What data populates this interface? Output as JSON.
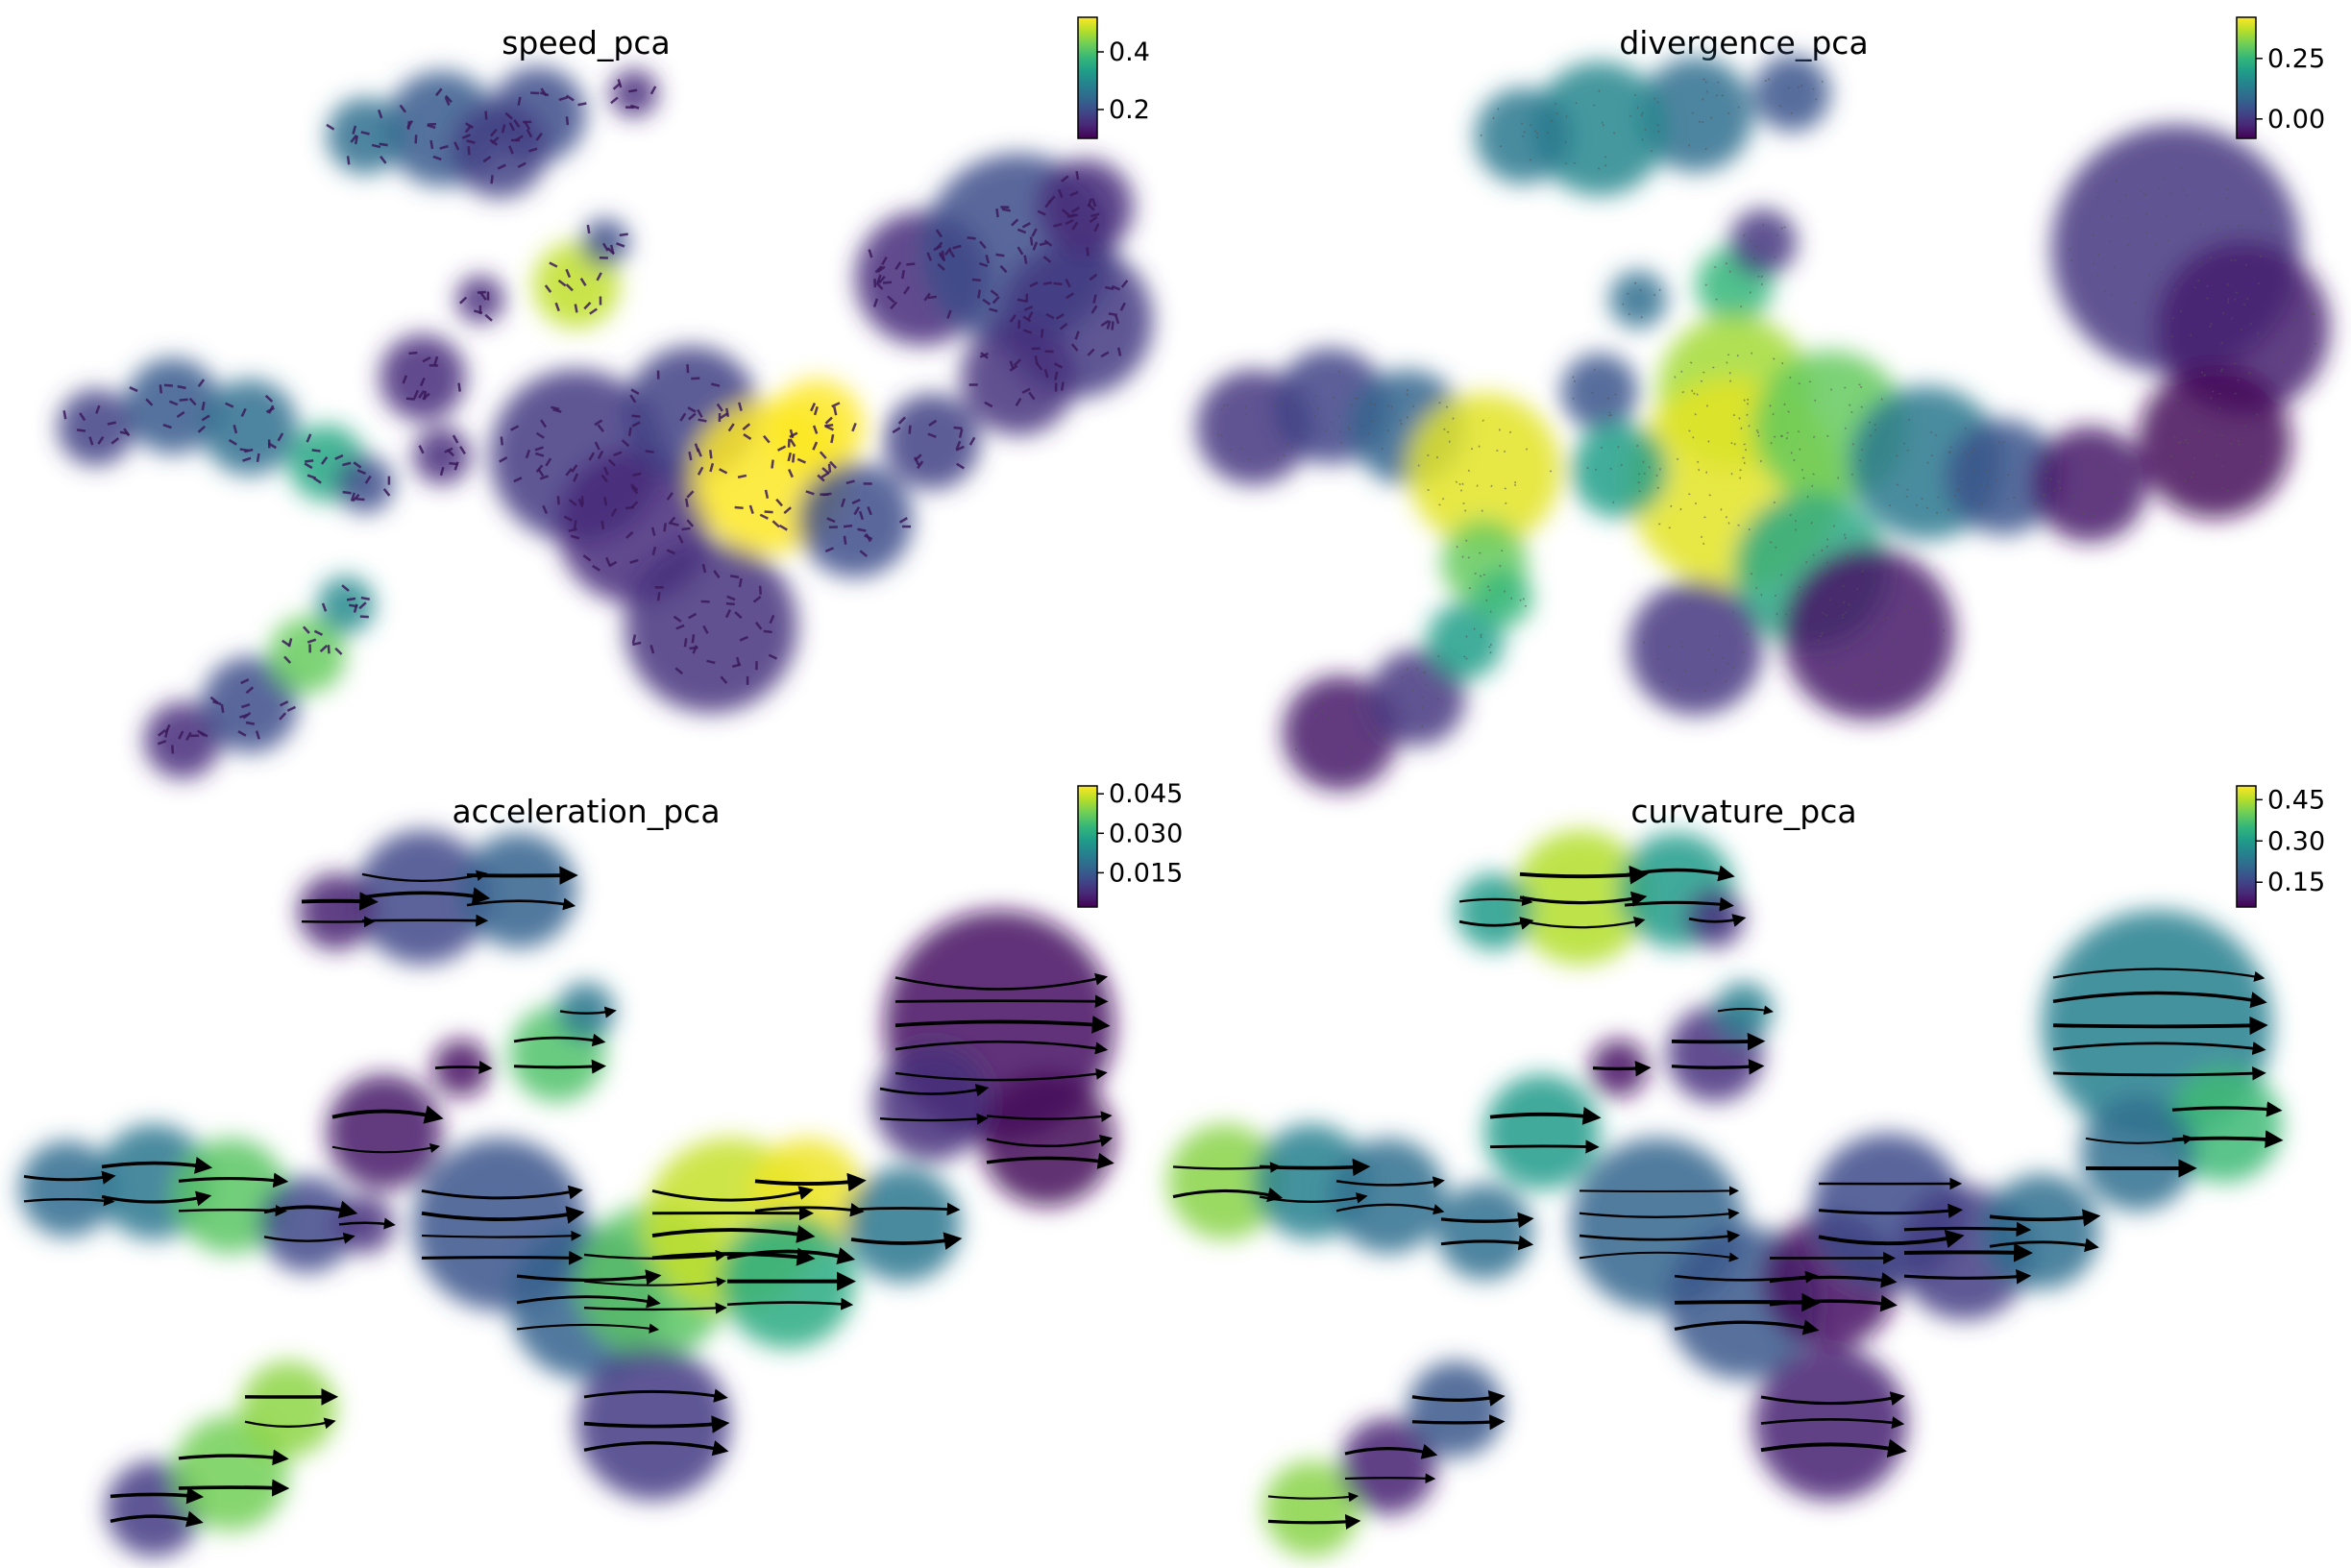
{
  "colormap": "viridis",
  "colors": {
    "viridis_stops": [
      "#440154",
      "#482878",
      "#3e4989",
      "#31688e",
      "#26828e",
      "#1f9e89",
      "#35b779",
      "#6ece58",
      "#b5de2b",
      "#fde725"
    ],
    "arrow": "#000000",
    "quiver": "#3b1a5a"
  },
  "chart_data": [
    {
      "id": "speed",
      "type": "scatter",
      "style": "embedding-quiver",
      "title": "speed_pca",
      "colorbar": {
        "ticks": [
          "0.2",
          "0.4"
        ],
        "range": [
          0.1,
          0.52
        ],
        "tick_values": [
          0.2,
          0.4
        ]
      },
      "blobs": [
        {
          "x": 5.2,
          "y": 9.2,
          "r": 0.5,
          "v": 0.2
        },
        {
          "x": 4.2,
          "y": 9.0,
          "r": 0.6,
          "v": 0.22
        },
        {
          "x": 3.4,
          "y": 8.9,
          "r": 0.4,
          "v": 0.25
        },
        {
          "x": 4.8,
          "y": 8.7,
          "r": 0.5,
          "v": 0.18
        },
        {
          "x": 6.2,
          "y": 9.5,
          "r": 0.25,
          "v": 0.15
        },
        {
          "x": 0.6,
          "y": 4.8,
          "r": 0.4,
          "v": 0.18
        },
        {
          "x": 1.4,
          "y": 5.1,
          "r": 0.5,
          "v": 0.22
        },
        {
          "x": 2.2,
          "y": 4.8,
          "r": 0.5,
          "v": 0.25
        },
        {
          "x": 3.0,
          "y": 4.3,
          "r": 0.4,
          "v": 0.35
        },
        {
          "x": 3.4,
          "y": 4.0,
          "r": 0.3,
          "v": 0.2
        },
        {
          "x": 1.5,
          "y": 0.4,
          "r": 0.4,
          "v": 0.15
        },
        {
          "x": 2.2,
          "y": 0.9,
          "r": 0.5,
          "v": 0.2
        },
        {
          "x": 2.8,
          "y": 1.6,
          "r": 0.4,
          "v": 0.42
        },
        {
          "x": 3.2,
          "y": 2.3,
          "r": 0.3,
          "v": 0.3
        },
        {
          "x": 4.0,
          "y": 5.5,
          "r": 0.45,
          "v": 0.15
        },
        {
          "x": 4.6,
          "y": 6.6,
          "r": 0.25,
          "v": 0.15
        },
        {
          "x": 5.6,
          "y": 6.8,
          "r": 0.45,
          "v": 0.48
        },
        {
          "x": 5.9,
          "y": 7.4,
          "r": 0.25,
          "v": 0.2
        },
        {
          "x": 4.2,
          "y": 4.4,
          "r": 0.3,
          "v": 0.15
        },
        {
          "x": 5.6,
          "y": 4.4,
          "r": 0.9,
          "v": 0.17
        },
        {
          "x": 6.2,
          "y": 3.4,
          "r": 0.8,
          "v": 0.15
        },
        {
          "x": 6.8,
          "y": 5.0,
          "r": 0.7,
          "v": 0.18
        },
        {
          "x": 7.0,
          "y": 2.0,
          "r": 0.9,
          "v": 0.16
        },
        {
          "x": 7.6,
          "y": 4.1,
          "r": 0.8,
          "v": 0.52
        },
        {
          "x": 8.1,
          "y": 4.8,
          "r": 0.5,
          "v": 0.52
        },
        {
          "x": 8.5,
          "y": 3.5,
          "r": 0.6,
          "v": 0.2
        },
        {
          "x": 9.3,
          "y": 4.6,
          "r": 0.5,
          "v": 0.18
        },
        {
          "x": 9.2,
          "y": 6.9,
          "r": 0.7,
          "v": 0.15
        },
        {
          "x": 10.2,
          "y": 7.3,
          "r": 1.0,
          "v": 0.2
        },
        {
          "x": 10.8,
          "y": 6.3,
          "r": 0.8,
          "v": 0.17
        },
        {
          "x": 10.2,
          "y": 5.5,
          "r": 0.6,
          "v": 0.16
        },
        {
          "x": 10.9,
          "y": 7.9,
          "r": 0.5,
          "v": 0.15
        }
      ]
    },
    {
      "id": "divergence",
      "type": "scatter",
      "style": "embedding-quiver",
      "title": "divergence_pca",
      "colorbar": {
        "ticks": [
          "0.00",
          "0.25"
        ],
        "range": [
          -0.08,
          0.42
        ],
        "tick_values": [
          0.0,
          0.25
        ]
      },
      "blobs": [
        {
          "x": 5.2,
          "y": 9.2,
          "r": 0.6,
          "v": 0.1
        },
        {
          "x": 4.2,
          "y": 9.0,
          "r": 0.7,
          "v": 0.15
        },
        {
          "x": 3.4,
          "y": 8.9,
          "r": 0.5,
          "v": 0.12
        },
        {
          "x": 6.2,
          "y": 9.5,
          "r": 0.4,
          "v": 0.05
        },
        {
          "x": 0.6,
          "y": 4.8,
          "r": 0.6,
          "v": 0.0
        },
        {
          "x": 1.4,
          "y": 5.1,
          "r": 0.6,
          "v": 0.02
        },
        {
          "x": 2.2,
          "y": 4.8,
          "r": 0.6,
          "v": 0.08
        },
        {
          "x": 3.0,
          "y": 4.2,
          "r": 0.8,
          "v": 0.4
        },
        {
          "x": 3.0,
          "y": 2.9,
          "r": 0.45,
          "v": 0.3
        },
        {
          "x": 1.5,
          "y": 0.5,
          "r": 0.6,
          "v": -0.05
        },
        {
          "x": 2.3,
          "y": 1.0,
          "r": 0.5,
          "v": 0.0
        },
        {
          "x": 2.8,
          "y": 1.8,
          "r": 0.4,
          "v": 0.2
        },
        {
          "x": 3.2,
          "y": 2.4,
          "r": 0.3,
          "v": 0.25
        },
        {
          "x": 4.2,
          "y": 5.3,
          "r": 0.4,
          "v": 0.05
        },
        {
          "x": 4.6,
          "y": 6.6,
          "r": 0.3,
          "v": 0.1
        },
        {
          "x": 5.6,
          "y": 6.8,
          "r": 0.4,
          "v": 0.25
        },
        {
          "x": 5.9,
          "y": 7.4,
          "r": 0.35,
          "v": 0.0
        },
        {
          "x": 5.6,
          "y": 5.3,
          "r": 0.8,
          "v": 0.35
        },
        {
          "x": 5.6,
          "y": 4.0,
          "r": 1.1,
          "v": 0.4
        },
        {
          "x": 4.4,
          "y": 4.2,
          "r": 0.5,
          "v": 0.2
        },
        {
          "x": 6.6,
          "y": 4.8,
          "r": 0.8,
          "v": 0.3
        },
        {
          "x": 6.4,
          "y": 2.8,
          "r": 0.8,
          "v": 0.22
        },
        {
          "x": 7.0,
          "y": 1.9,
          "r": 0.9,
          "v": -0.05
        },
        {
          "x": 5.2,
          "y": 1.7,
          "r": 0.7,
          "v": 0.0
        },
        {
          "x": 7.6,
          "y": 4.3,
          "r": 0.8,
          "v": 0.12
        },
        {
          "x": 8.4,
          "y": 4.1,
          "r": 0.6,
          "v": 0.05
        },
        {
          "x": 9.3,
          "y": 4.0,
          "r": 0.6,
          "v": -0.05
        },
        {
          "x": 10.2,
          "y": 7.3,
          "r": 1.3,
          "v": 0.0
        },
        {
          "x": 10.9,
          "y": 6.2,
          "r": 0.9,
          "v": -0.04
        },
        {
          "x": 10.6,
          "y": 4.6,
          "r": 0.8,
          "v": -0.07
        }
      ]
    },
    {
      "id": "acceleration",
      "type": "scatter",
      "style": "embedding-streamlines",
      "title": "acceleration_pca",
      "colorbar": {
        "ticks": [
          "0.015",
          "0.030",
          "0.045"
        ],
        "range": [
          0.002,
          0.048
        ],
        "tick_values": [
          0.015,
          0.03,
          0.045
        ]
      },
      "blobs": [
        {
          "x": 4.2,
          "y": 9.0,
          "r": 0.7,
          "v": 0.012
        },
        {
          "x": 5.2,
          "y": 9.1,
          "r": 0.6,
          "v": 0.016
        },
        {
          "x": 3.3,
          "y": 8.8,
          "r": 0.4,
          "v": 0.006
        },
        {
          "x": 0.5,
          "y": 4.9,
          "r": 0.5,
          "v": 0.018
        },
        {
          "x": 1.4,
          "y": 5.0,
          "r": 0.6,
          "v": 0.02
        },
        {
          "x": 2.2,
          "y": 4.8,
          "r": 0.6,
          "v": 0.036
        },
        {
          "x": 3.0,
          "y": 4.4,
          "r": 0.5,
          "v": 0.012
        },
        {
          "x": 3.6,
          "y": 4.4,
          "r": 0.3,
          "v": 0.008
        },
        {
          "x": 1.4,
          "y": 0.4,
          "r": 0.5,
          "v": 0.01
        },
        {
          "x": 2.2,
          "y": 0.9,
          "r": 0.6,
          "v": 0.038
        },
        {
          "x": 2.8,
          "y": 1.8,
          "r": 0.5,
          "v": 0.04
        },
        {
          "x": 4.6,
          "y": 6.6,
          "r": 0.3,
          "v": 0.004
        },
        {
          "x": 5.6,
          "y": 6.8,
          "r": 0.5,
          "v": 0.035
        },
        {
          "x": 5.9,
          "y": 7.4,
          "r": 0.3,
          "v": 0.02
        },
        {
          "x": 3.8,
          "y": 5.7,
          "r": 0.6,
          "v": 0.005
        },
        {
          "x": 5.0,
          "y": 4.4,
          "r": 0.9,
          "v": 0.014
        },
        {
          "x": 5.9,
          "y": 3.3,
          "r": 0.8,
          "v": 0.016
        },
        {
          "x": 6.6,
          "y": 3.6,
          "r": 0.8,
          "v": 0.036
        },
        {
          "x": 7.4,
          "y": 4.4,
          "r": 0.9,
          "v": 0.044
        },
        {
          "x": 8.2,
          "y": 4.8,
          "r": 0.6,
          "v": 0.047
        },
        {
          "x": 8.0,
          "y": 3.6,
          "r": 0.7,
          "v": 0.03
        },
        {
          "x": 6.6,
          "y": 1.6,
          "r": 0.8,
          "v": 0.01
        },
        {
          "x": 9.2,
          "y": 4.4,
          "r": 0.6,
          "v": 0.02
        },
        {
          "x": 10.2,
          "y": 7.2,
          "r": 1.2,
          "v": 0.004
        },
        {
          "x": 10.7,
          "y": 5.6,
          "r": 0.7,
          "v": 0.003
        },
        {
          "x": 9.5,
          "y": 6.1,
          "r": 0.6,
          "v": 0.008
        }
      ]
    },
    {
      "id": "curvature",
      "type": "scatter",
      "style": "embedding-streamlines",
      "title": "curvature_pca",
      "colorbar": {
        "ticks": [
          "0.15",
          "0.30",
          "0.45"
        ],
        "range": [
          0.06,
          0.5
        ],
        "tick_values": [
          0.15,
          0.3,
          0.45
        ]
      },
      "blobs": [
        {
          "x": 4.2,
          "y": 9.0,
          "r": 0.7,
          "v": 0.45
        },
        {
          "x": 5.2,
          "y": 9.1,
          "r": 0.6,
          "v": 0.3
        },
        {
          "x": 5.6,
          "y": 8.7,
          "r": 0.3,
          "v": 0.12
        },
        {
          "x": 3.3,
          "y": 8.8,
          "r": 0.4,
          "v": 0.3
        },
        {
          "x": 0.5,
          "y": 5.0,
          "r": 0.6,
          "v": 0.42
        },
        {
          "x": 1.4,
          "y": 5.0,
          "r": 0.6,
          "v": 0.25
        },
        {
          "x": 2.2,
          "y": 4.8,
          "r": 0.6,
          "v": 0.22
        },
        {
          "x": 3.2,
          "y": 4.3,
          "r": 0.5,
          "v": 0.22
        },
        {
          "x": 1.4,
          "y": 0.4,
          "r": 0.5,
          "v": 0.42
        },
        {
          "x": 2.2,
          "y": 1.0,
          "r": 0.5,
          "v": 0.1
        },
        {
          "x": 2.9,
          "y": 1.8,
          "r": 0.5,
          "v": 0.18
        },
        {
          "x": 4.6,
          "y": 6.6,
          "r": 0.3,
          "v": 0.08
        },
        {
          "x": 5.6,
          "y": 6.8,
          "r": 0.5,
          "v": 0.12
        },
        {
          "x": 5.9,
          "y": 7.4,
          "r": 0.3,
          "v": 0.25
        },
        {
          "x": 3.8,
          "y": 5.7,
          "r": 0.6,
          "v": 0.3
        },
        {
          "x": 5.0,
          "y": 4.4,
          "r": 0.9,
          "v": 0.2
        },
        {
          "x": 5.9,
          "y": 3.3,
          "r": 0.8,
          "v": 0.18
        },
        {
          "x": 6.8,
          "y": 3.6,
          "r": 0.7,
          "v": 0.08
        },
        {
          "x": 7.4,
          "y": 4.6,
          "r": 0.8,
          "v": 0.16
        },
        {
          "x": 8.2,
          "y": 4.0,
          "r": 0.7,
          "v": 0.14
        },
        {
          "x": 6.8,
          "y": 1.6,
          "r": 0.8,
          "v": 0.1
        },
        {
          "x": 9.0,
          "y": 4.3,
          "r": 0.6,
          "v": 0.22
        },
        {
          "x": 10.2,
          "y": 7.2,
          "r": 1.2,
          "v": 0.25
        },
        {
          "x": 10.9,
          "y": 5.8,
          "r": 0.6,
          "v": 0.36
        },
        {
          "x": 10.0,
          "y": 5.4,
          "r": 0.6,
          "v": 0.22
        }
      ]
    }
  ]
}
